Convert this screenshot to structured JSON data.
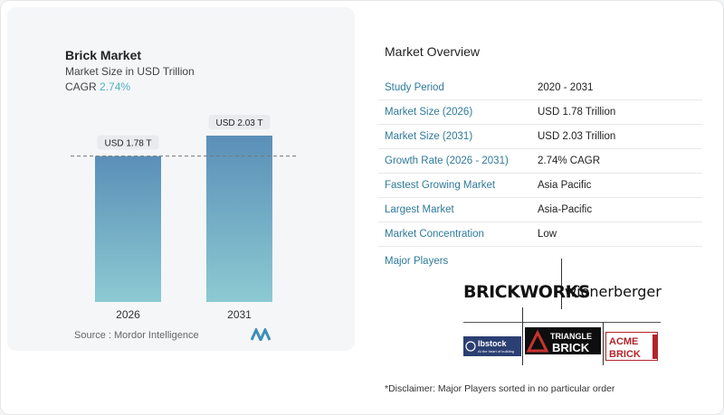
{
  "chart_card": {
    "title": "Brick Market",
    "subtitle": "Market Size in USD Trillion",
    "cagr_label": "CAGR",
    "cagr_value": "2.74%",
    "source": "Source :  Mordor Intelligence"
  },
  "chart_data": {
    "type": "bar",
    "categories": [
      "2026",
      "2031"
    ],
    "values": [
      1.78,
      2.03
    ],
    "data_labels": [
      "USD 1.78 T",
      "USD 2.03 T"
    ],
    "title": "Brick Market",
    "subtitle": "Market Size in USD Trillion",
    "xlabel": "",
    "ylabel": "",
    "ylim": [
      0,
      2.03
    ],
    "grid": false,
    "reference_line": "dashed line at 2026 value",
    "colors": {
      "bar_top": "#5b8fb8",
      "bar_bottom": "#8ccad2"
    }
  },
  "overview": {
    "title": "Market Overview",
    "rows": [
      {
        "label": "Study Period",
        "value": "2020 - 2031"
      },
      {
        "label": "Market Size (2026)",
        "value": "USD 1.78 Trillion"
      },
      {
        "label": "Market Size (2031)",
        "value": "USD 2.03 Trillion"
      },
      {
        "label": "Growth Rate (2026 - 2031)",
        "value": "2.74% CAGR"
      },
      {
        "label": "Fastest Growing Market",
        "value": "Asia Pacific"
      },
      {
        "label": "Largest Market",
        "value": "Asia-Pacific"
      },
      {
        "label": "Market Concentration",
        "value": "Low"
      }
    ]
  },
  "players": {
    "label": "Major Players",
    "logos": {
      "brickworks": "BRICKWORKS",
      "wienerberger": "wienerberger",
      "ibstock": "Ibstock",
      "ibstock_tagline": "At the heart of building",
      "triangle_line1": "TRIANGLE",
      "triangle_line2": "BRICK",
      "acme_line1": "ACME",
      "acme_line2": "BRICK"
    }
  },
  "disclaimer": "*Disclaimer: Major Players sorted in no particular order"
}
